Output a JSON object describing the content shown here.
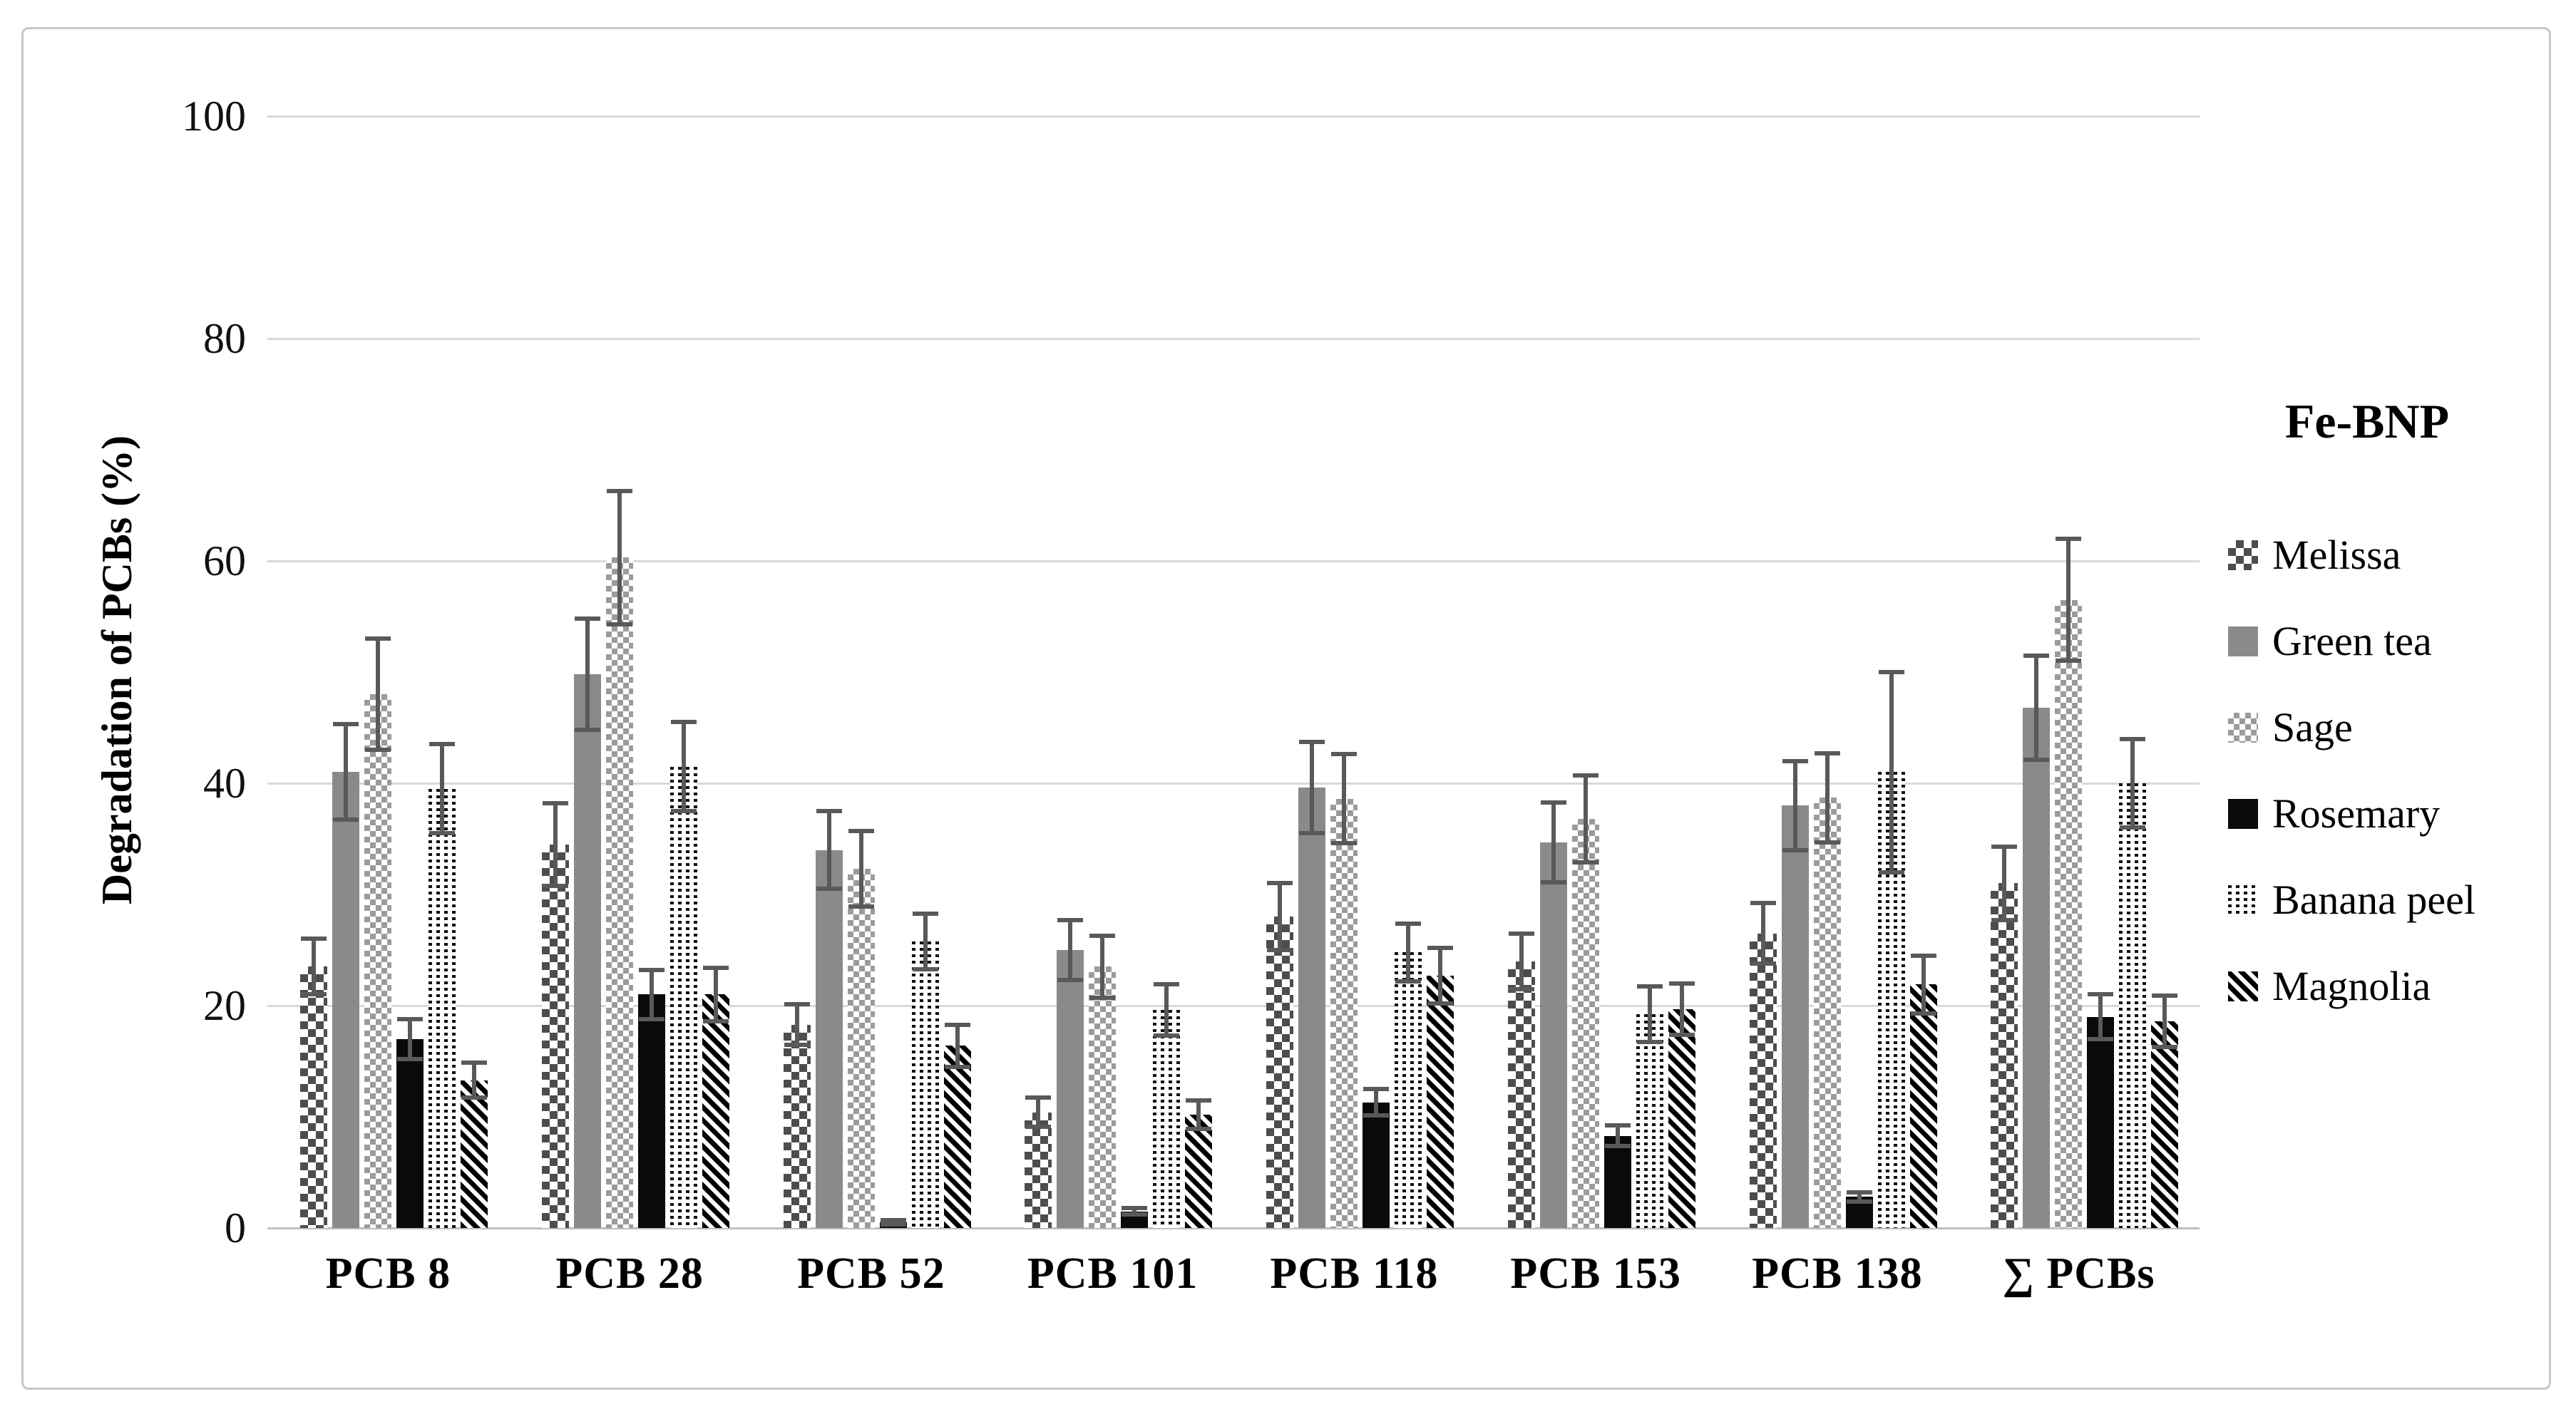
{
  "figure": {
    "background": "#ffffff",
    "border_color": "#c3c7cb"
  },
  "chart_data": {
    "type": "bar",
    "title": "",
    "legend_title": "Fe-BNP",
    "legend_position": "right",
    "xlabel": "",
    "ylabel": "Degradation of PCBs (%)",
    "ylim": [
      0,
      100
    ],
    "yticks": [
      0,
      20,
      40,
      60,
      80,
      100
    ],
    "grid": true,
    "error_bars": true,
    "error_bar_color": "#595959",
    "gridline_color": "#d9d9d9",
    "categories": [
      "PCB 8",
      "PCB 28",
      "PCB 52",
      "PCB 101",
      "PCB 118",
      "PCB 153",
      "PCB 138",
      "∑ PCBs"
    ],
    "series": [
      {
        "name": "Melissa",
        "pattern": "checker-dark",
        "color": "#4d4d4d",
        "values": [
          23.5,
          34.5,
          18.3,
          10.4,
          28.0,
          24.0,
          26.5,
          31.0
        ],
        "errors": [
          2.5,
          3.7,
          1.8,
          1.3,
          3.0,
          2.5,
          2.7,
          3.3
        ]
      },
      {
        "name": "Green tea",
        "pattern": "solid-gray",
        "color": "#8a8a8a",
        "values": [
          41.0,
          49.8,
          34.0,
          25.0,
          39.6,
          34.7,
          38.0,
          46.8
        ],
        "errors": [
          4.3,
          5.0,
          3.5,
          2.7,
          4.1,
          3.6,
          4.0,
          4.7
        ]
      },
      {
        "name": "Sage",
        "pattern": "checker-light",
        "color": "#9b9b9b",
        "values": [
          48.0,
          60.3,
          32.3,
          23.5,
          38.6,
          36.8,
          38.7,
          56.5
        ],
        "errors": [
          5.0,
          6.0,
          3.4,
          2.8,
          4.0,
          3.9,
          4.0,
          5.5
        ]
      },
      {
        "name": "Rosemary",
        "pattern": "solid-black",
        "color": "#0a0a0a",
        "values": [
          17.0,
          21.0,
          0.5,
          1.5,
          11.3,
          8.3,
          2.8,
          19.0
        ],
        "errors": [
          1.8,
          2.2,
          0.2,
          0.3,
          1.2,
          0.9,
          0.4,
          2.0
        ]
      },
      {
        "name": "Banana peel",
        "pattern": "dot-grid",
        "color": "#111111",
        "values": [
          39.5,
          41.5,
          25.8,
          19.6,
          24.8,
          19.2,
          41.0,
          40.0
        ],
        "errors": [
          4.0,
          4.0,
          2.5,
          2.3,
          2.6,
          2.5,
          9.0,
          4.0
        ]
      },
      {
        "name": "Magnolia",
        "pattern": "diagonal-stripes",
        "color": "#000000",
        "values": [
          13.3,
          21.0,
          16.4,
          10.2,
          22.7,
          19.7,
          21.9,
          18.6
        ],
        "errors": [
          1.6,
          2.4,
          1.9,
          1.3,
          2.5,
          2.3,
          2.6,
          2.3
        ]
      }
    ]
  }
}
